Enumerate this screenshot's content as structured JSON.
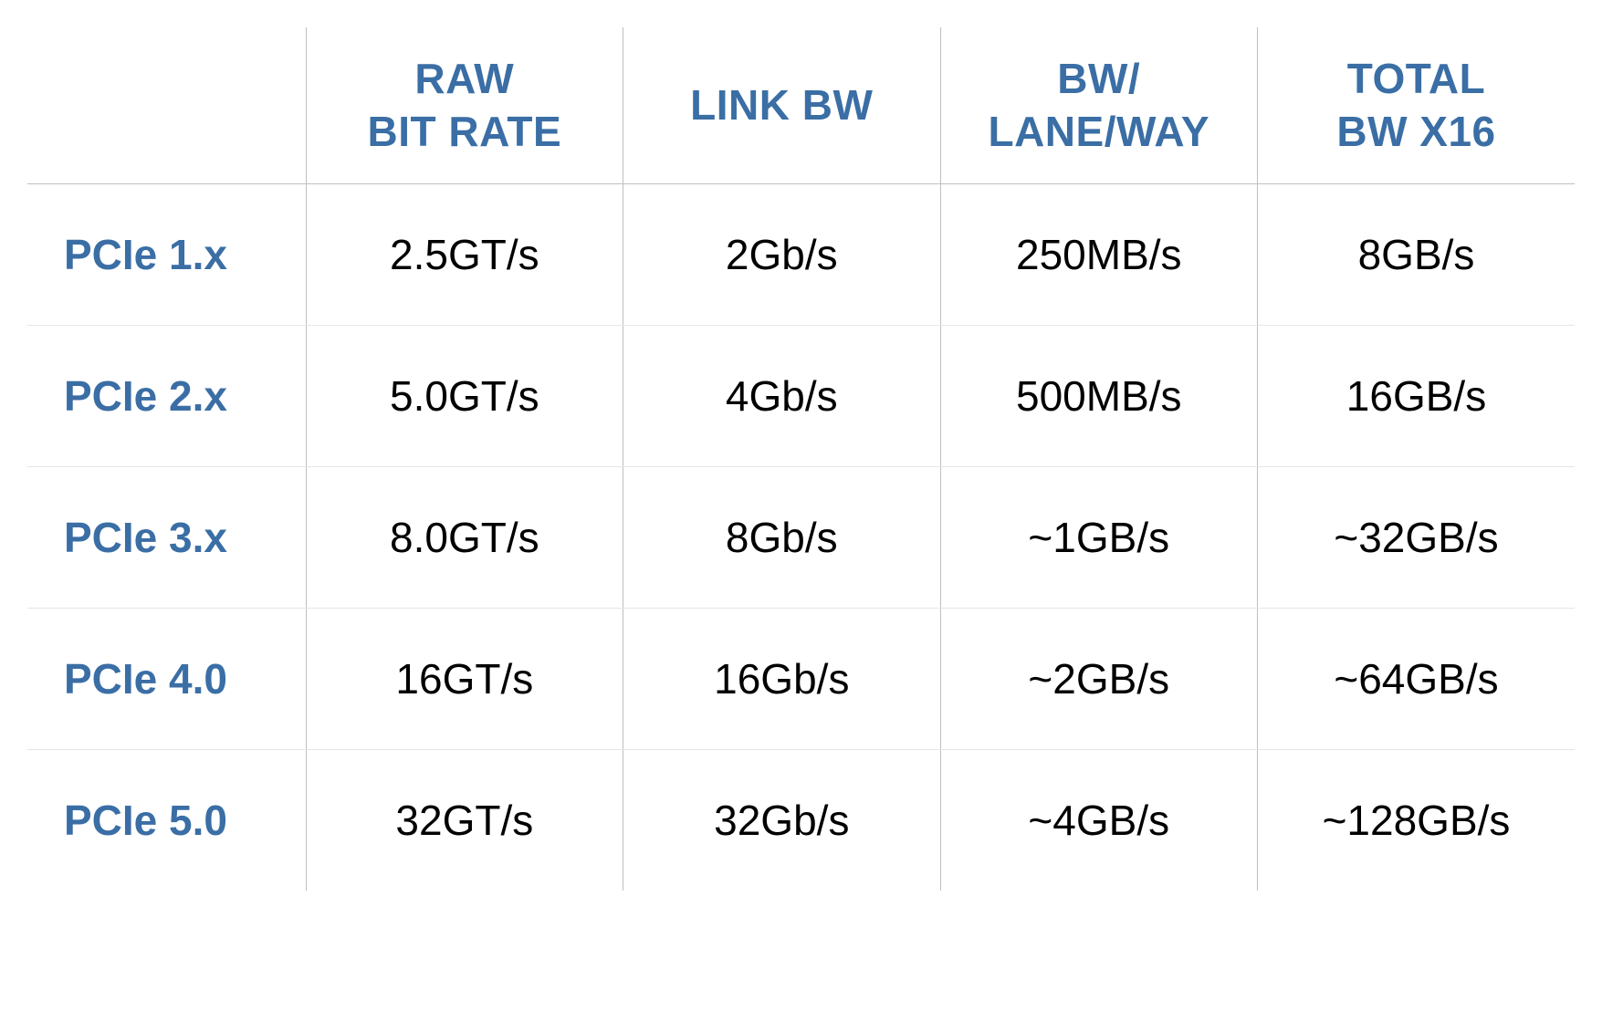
{
  "table": {
    "type": "table",
    "background_color": "#ffffff",
    "border_color": "#bfbfbf",
    "row_divider_color": "#e6e6e6",
    "header_text_color": "#3a6ea5",
    "row_header_text_color": "#3a6ea5",
    "body_text_color": "#000000",
    "header_fontsize": 46,
    "body_fontsize": 46,
    "header_fontweight": 700,
    "row_header_fontweight": 700,
    "body_fontweight": 400,
    "font_family": "Helvetica Neue",
    "col_widths_pct": [
      18,
      20.5,
      20.5,
      20.5,
      20.5
    ],
    "columns": [
      {
        "l1": "",
        "l2": ""
      },
      {
        "l1": "RAW",
        "l2": "BIT RATE"
      },
      {
        "l1": "LINK BW",
        "l2": ""
      },
      {
        "l1": "BW/",
        "l2": "LANE/WAY"
      },
      {
        "l1": "TOTAL",
        "l2": "BW X16"
      }
    ],
    "rows": [
      {
        "label": "PCIe 1.x",
        "raw": "2.5GT/s",
        "link": "2Gb/s",
        "lane": "250MB/s",
        "total": "8GB/s"
      },
      {
        "label": "PCIe 2.x",
        "raw": "5.0GT/s",
        "link": "4Gb/s",
        "lane": "500MB/s",
        "total": "16GB/s"
      },
      {
        "label": "PCIe 3.x",
        "raw": "8.0GT/s",
        "link": "8Gb/s",
        "lane": "~1GB/s",
        "total": "~32GB/s"
      },
      {
        "label": "PCIe 4.0",
        "raw": "16GT/s",
        "link": "16Gb/s",
        "lane": "~2GB/s",
        "total": "~64GB/s"
      },
      {
        "label": "PCIe 5.0",
        "raw": "32GT/s",
        "link": "32Gb/s",
        "lane": "~4GB/s",
        "total": "~128GB/s"
      }
    ]
  }
}
